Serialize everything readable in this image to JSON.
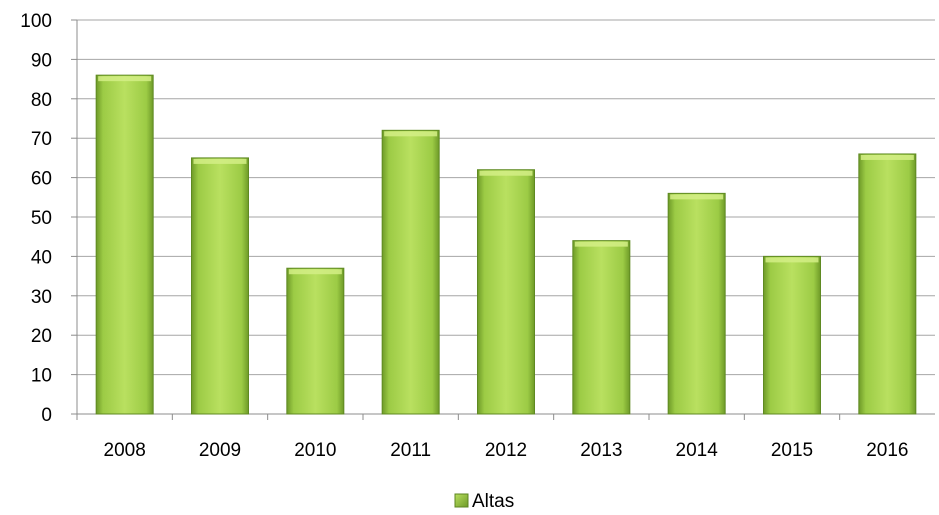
{
  "chart_data": {
    "type": "bar",
    "categories": [
      "2008",
      "2009",
      "2010",
      "2011",
      "2012",
      "2013",
      "2014",
      "2015",
      "2016"
    ],
    "series": [
      {
        "name": "Altas",
        "values": [
          86,
          65,
          37,
          72,
          62,
          44,
          56,
          40,
          66
        ],
        "color": "#8ab83a"
      }
    ],
    "ylim": [
      0,
      100
    ],
    "yticks": [
      "0",
      "10",
      "20",
      "30",
      "40",
      "50",
      "60",
      "70",
      "80",
      "90",
      "100"
    ],
    "grid": true,
    "legend": {
      "position": "bottom",
      "label": "Altas"
    },
    "colors": {
      "bar_light": "#b6de5a",
      "bar_dark": "#6f9a2a",
      "grid": "#a6a6a6"
    }
  }
}
